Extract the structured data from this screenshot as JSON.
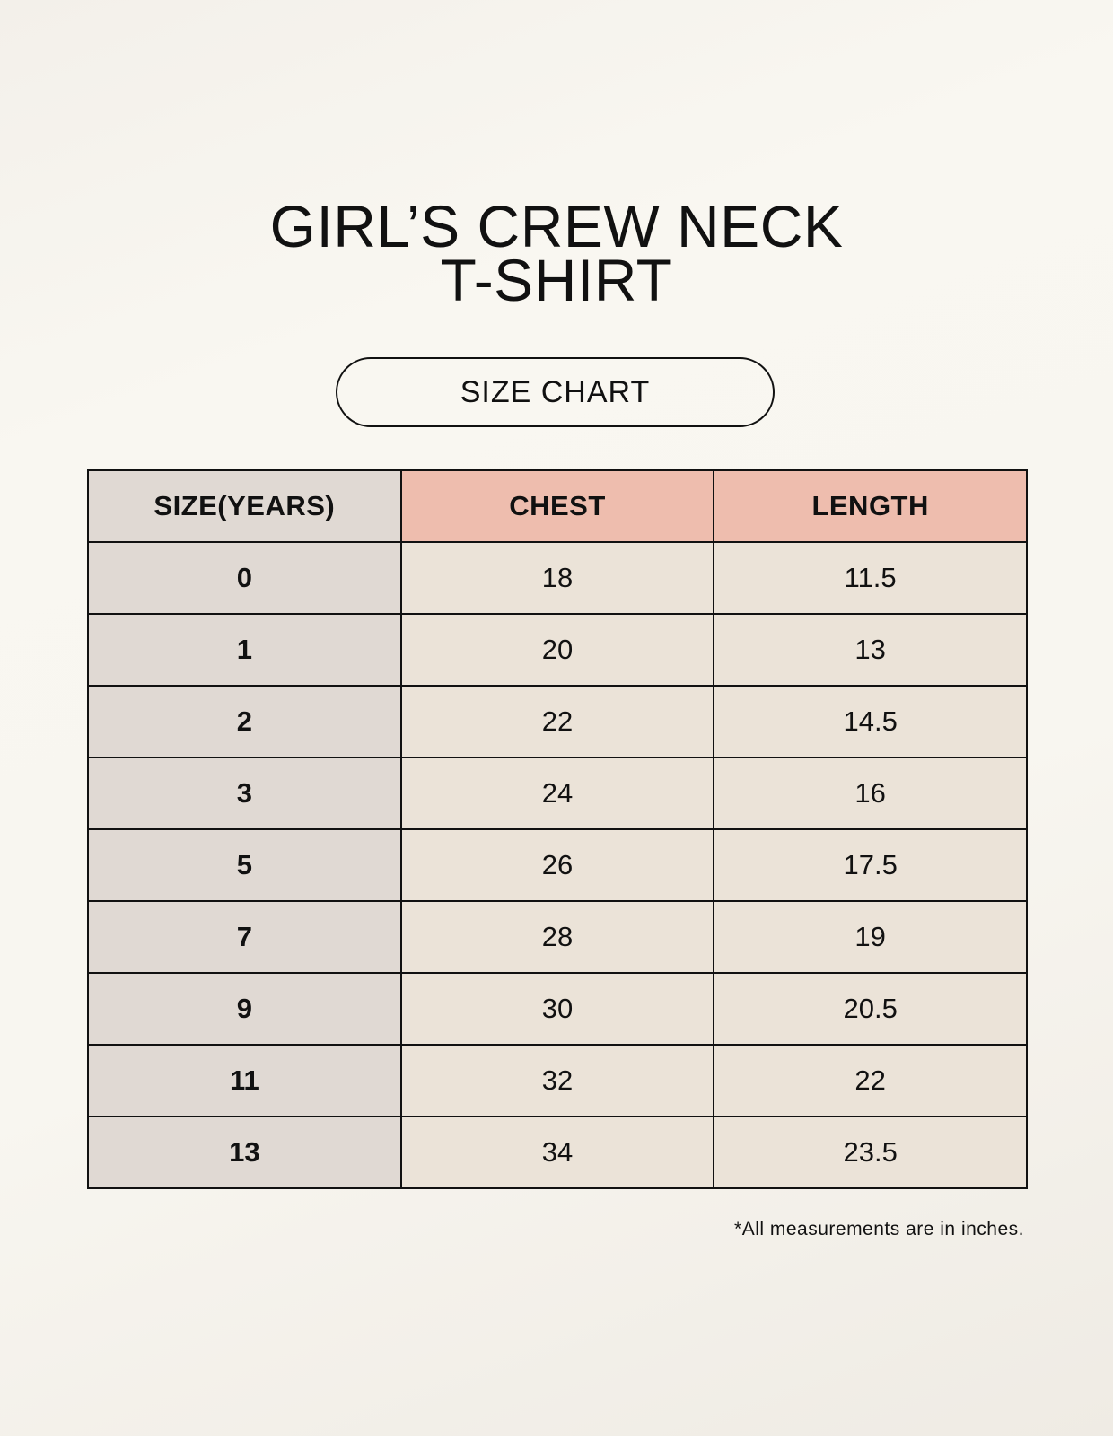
{
  "title": {
    "line1": "GIRL’S CREW NECK",
    "line2": "T-SHIRT"
  },
  "badge": "SIZE CHART",
  "colors": {
    "header_size": "#e0d9d3",
    "header_measure": "#eebdae",
    "body_size": "#e0d9d3",
    "body_measure": "#ebe3d8"
  },
  "table": {
    "headers": [
      "SIZE(YEARS)",
      "CHEST",
      "LENGTH"
    ],
    "rows": [
      [
        "0",
        "18",
        "11.5"
      ],
      [
        "1",
        "20",
        "13"
      ],
      [
        "2",
        "22",
        "14.5"
      ],
      [
        "3",
        "24",
        "16"
      ],
      [
        "5",
        "26",
        "17.5"
      ],
      [
        "7",
        "28",
        "19"
      ],
      [
        "9",
        "30",
        "20.5"
      ],
      [
        "11",
        "32",
        "22"
      ],
      [
        "13",
        "34",
        "23.5"
      ]
    ]
  },
  "footnote": "*All measurements are in inches."
}
